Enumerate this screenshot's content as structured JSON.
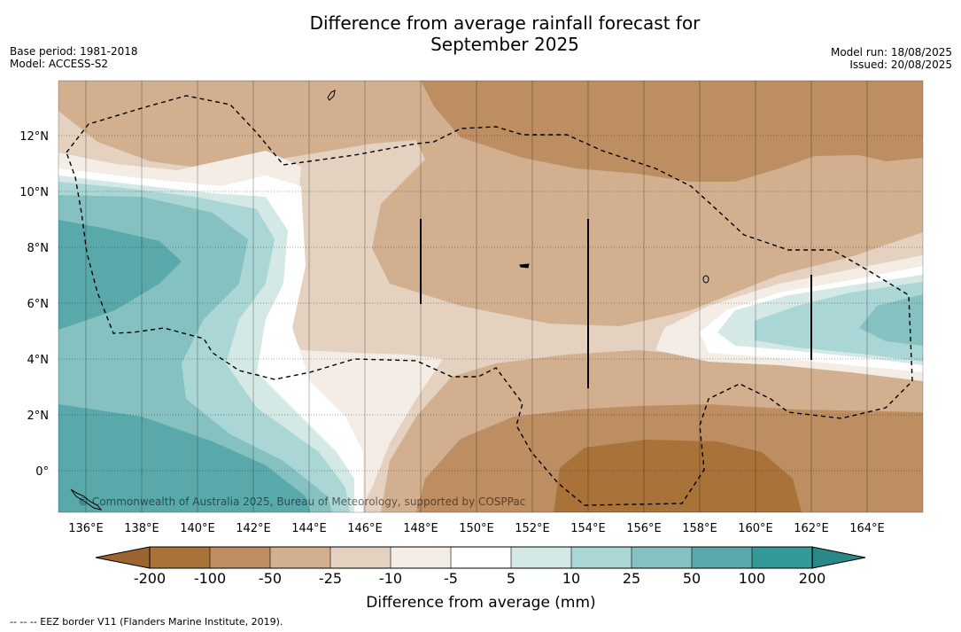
{
  "title_line1": "Difference from average rainfall forecast for",
  "title_line2": "September 2025",
  "meta_left": [
    "Base period: 1981-2018",
    "Model: ACCESS-S2"
  ],
  "meta_right": [
    "Model run: 18/08/2025",
    "Issued: 20/08/2025"
  ],
  "lon_ticks": [
    "136°E",
    "138°E",
    "140°E",
    "142°E",
    "144°E",
    "146°E",
    "148°E",
    "150°E",
    "152°E",
    "154°E",
    "156°E",
    "158°E",
    "160°E",
    "162°E",
    "164°E"
  ],
  "lat_ticks": [
    "12°N",
    "10°N",
    "8°N",
    "6°N",
    "4°N",
    "2°N",
    "0°"
  ],
  "copyright": "© Commonwealth of Australia 2025, Bureau of Meteorology, supported by COSPPac",
  "colorbar": {
    "labels": [
      "-200",
      "-100",
      "-50",
      "-25",
      "-10",
      "-5",
      "5",
      "10",
      "25",
      "50",
      "100",
      "200"
    ],
    "colors": [
      "#a97238",
      "#bd8e62",
      "#d2b08f",
      "#e4d1c0",
      "#f3ede6",
      "#ffffff",
      "#d4e8e6",
      "#aad6d5",
      "#85c1c0",
      "#5aa9aa",
      "#35999a"
    ],
    "under_color": "#9a6530",
    "over_color": "#2a8988",
    "label": "Difference from average (mm)"
  },
  "footnote": "--  --  -- EEZ border V11 (Flanders Marine Institute, 2019)."
}
